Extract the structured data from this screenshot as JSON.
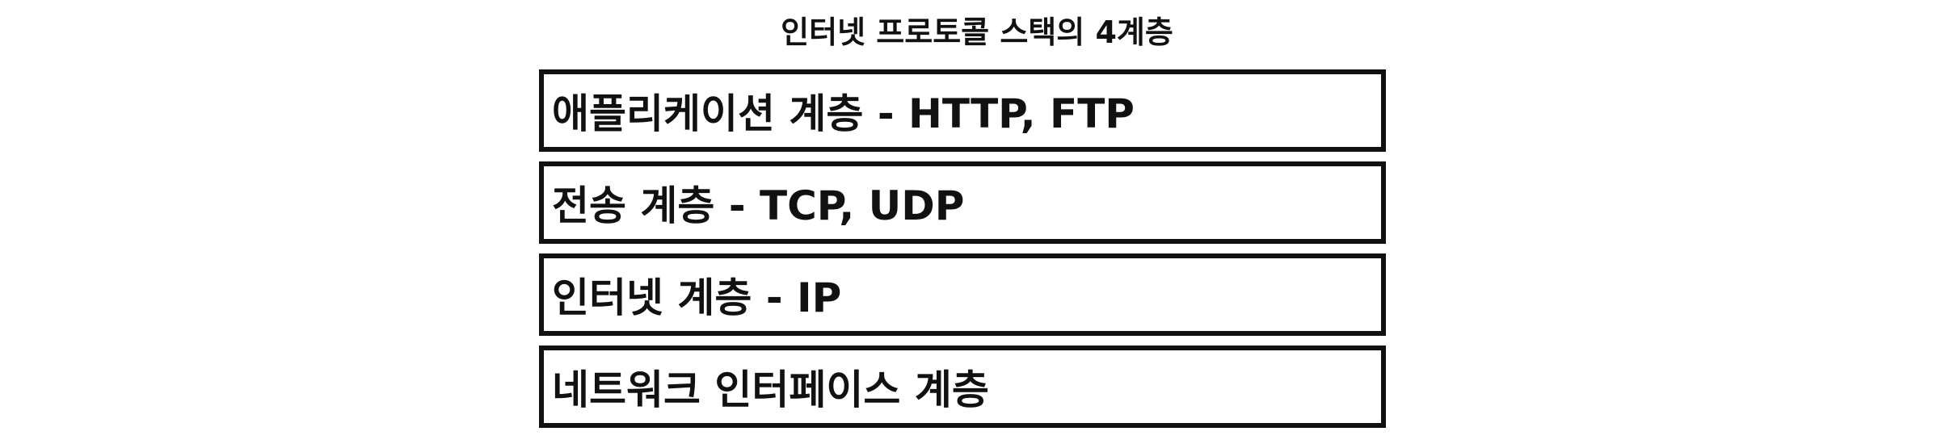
{
  "title": "인터넷 프로토콜 스택의 4계층",
  "layers": [
    {
      "label": "애플리케이션 계층 - HTTP, FTP"
    },
    {
      "label": "전송 계층 - TCP, UDP"
    },
    {
      "label": "인터넷 계층 - IP"
    },
    {
      "label": "네트워크 인터페이스 계층"
    }
  ]
}
